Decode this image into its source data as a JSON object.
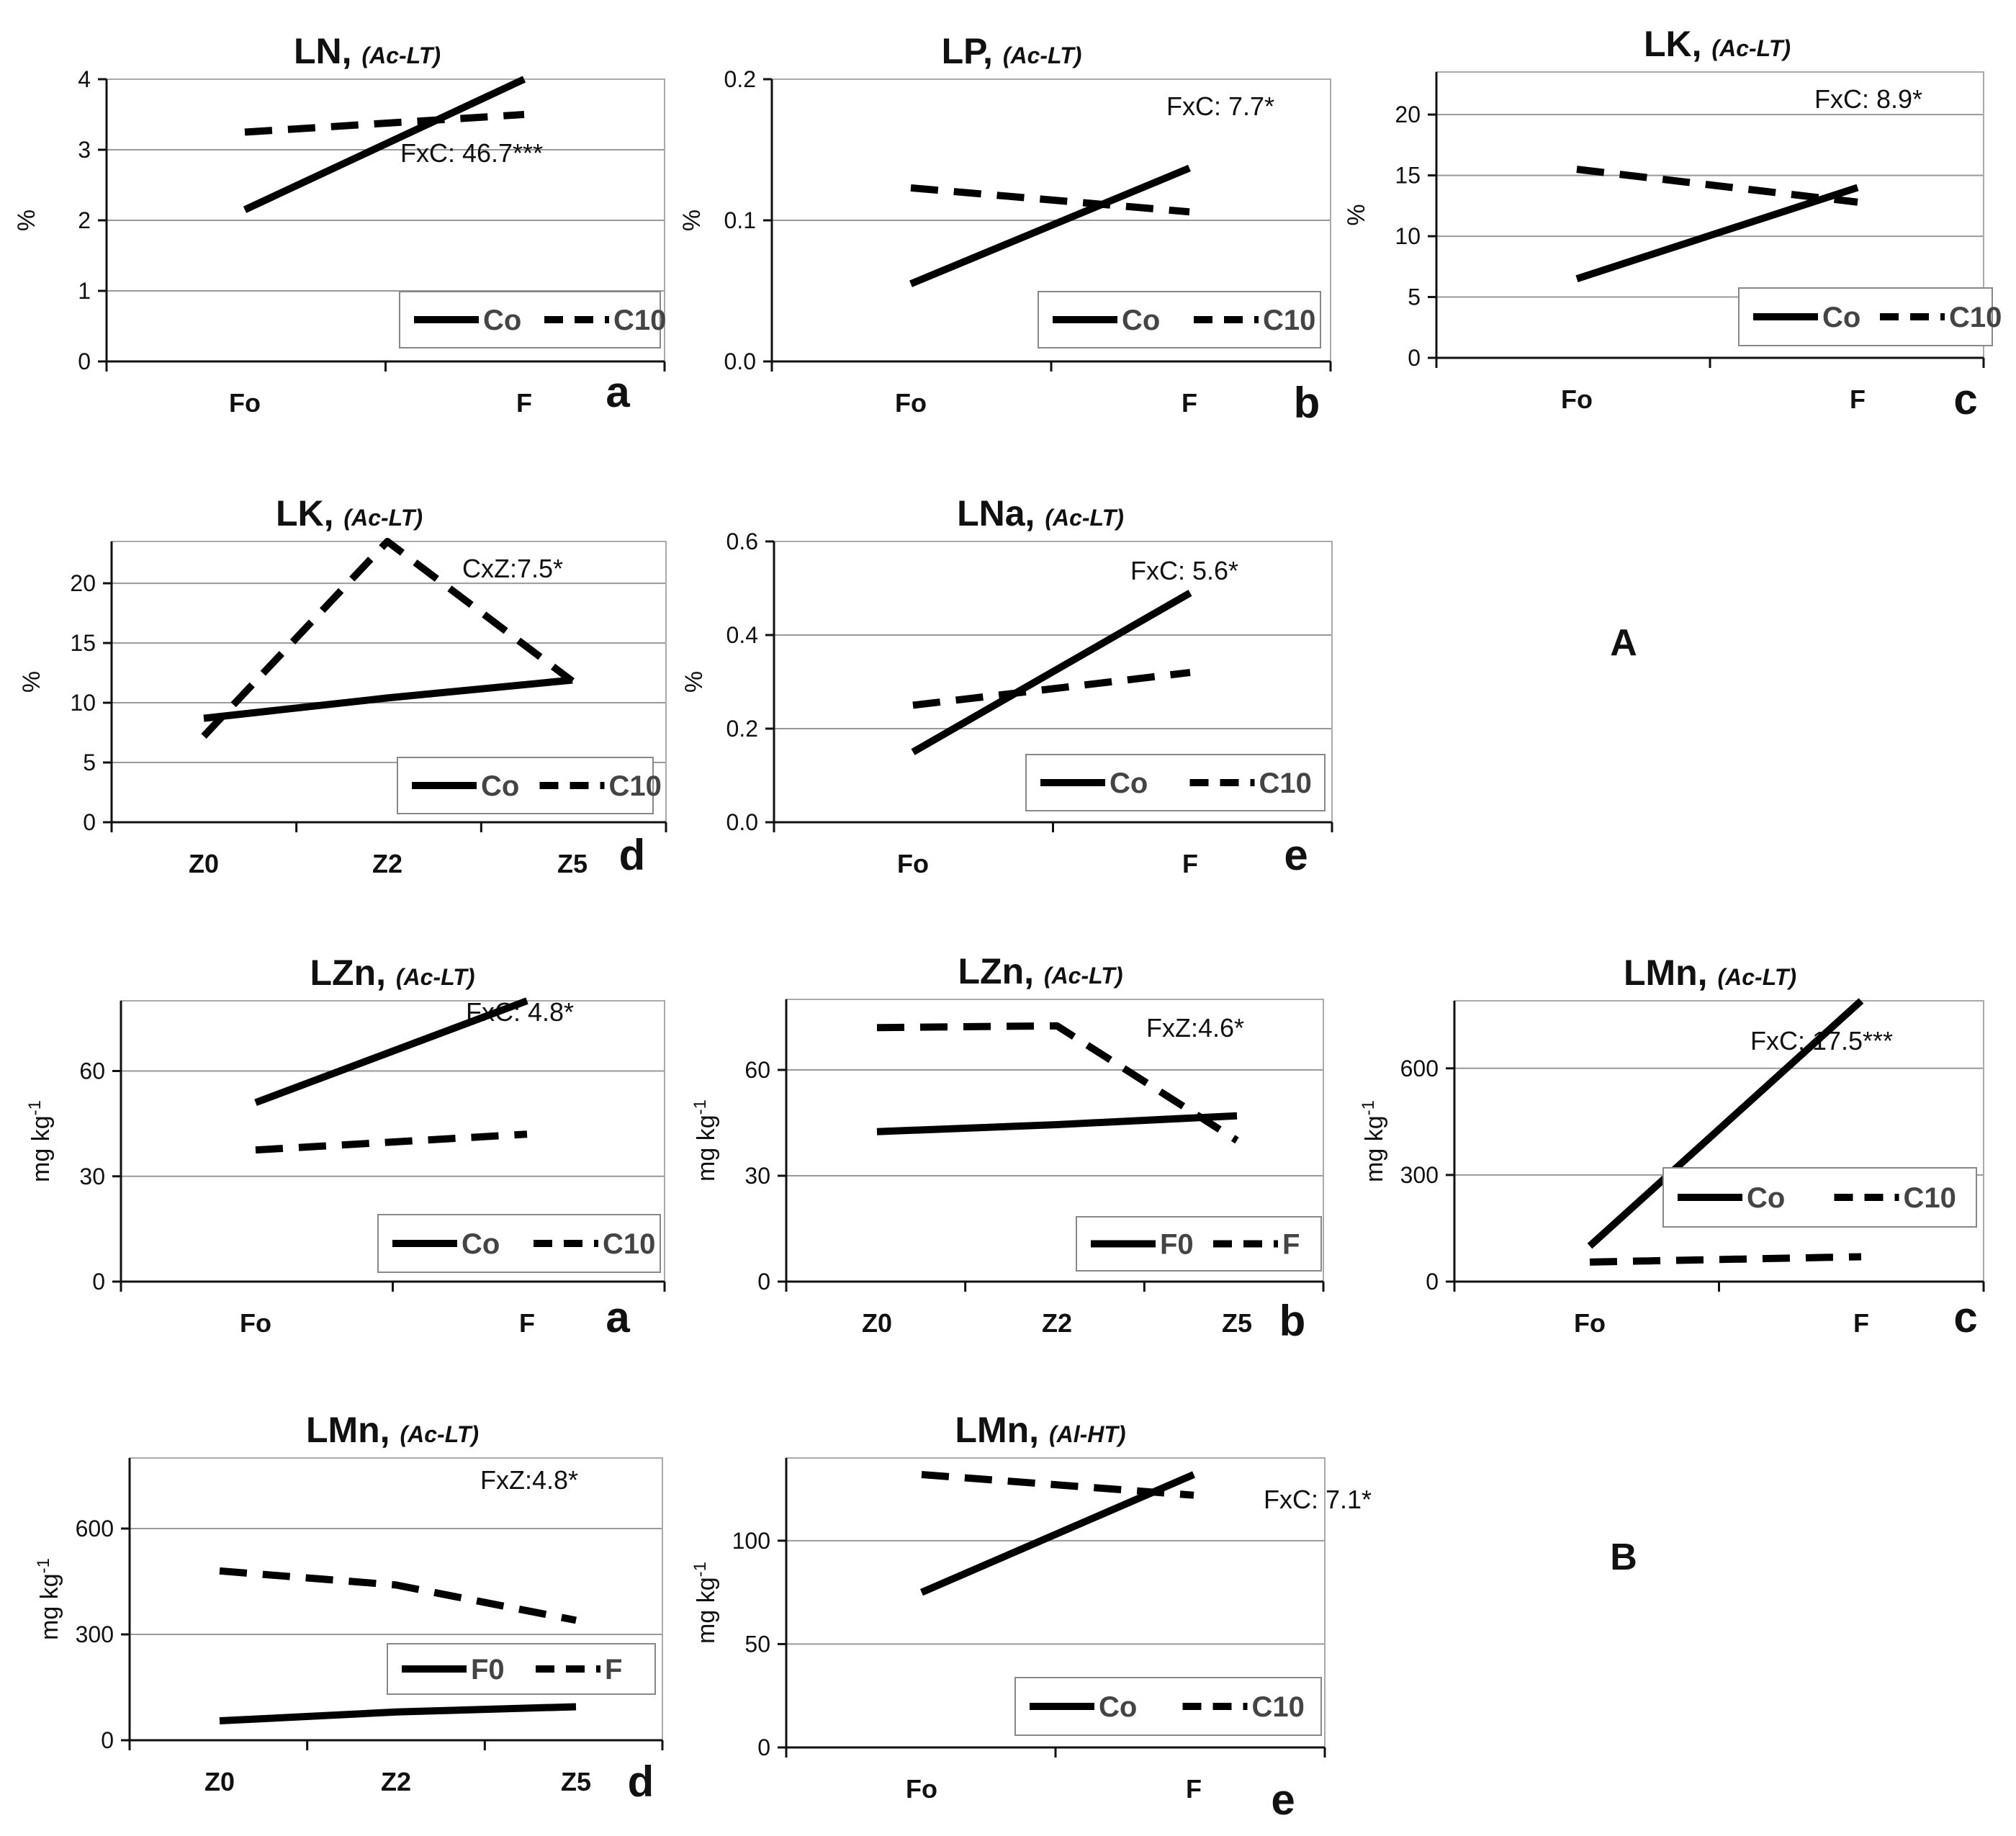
{
  "group_labels": [
    "A",
    "B"
  ],
  "chart_data": [
    {
      "type": "line",
      "title": "LN,",
      "subtitle": "(Ac-LT)",
      "panel": "a",
      "ylabel": "%",
      "categories": [
        "Fo",
        "F"
      ],
      "ylim": [
        0,
        4
      ],
      "yticks": [
        0,
        1,
        2,
        3,
        4
      ],
      "ytick_labels": [
        "0",
        "1",
        "2",
        "3",
        "4"
      ],
      "annotation": "FxC: 46.7***",
      "series": [
        {
          "name": "Co",
          "style": "solid",
          "values": [
            2.15,
            4.0
          ]
        },
        {
          "name": "C10",
          "style": "dashed",
          "values": [
            3.25,
            3.5
          ]
        }
      ]
    },
    {
      "type": "line",
      "title": "LP,",
      "subtitle": "(Ac-LT)",
      "panel": "b",
      "ylabel": "%",
      "categories": [
        "Fo",
        "F"
      ],
      "ylim": [
        0,
        0.2
      ],
      "yticks": [
        0,
        0.1,
        0.2
      ],
      "ytick_labels": [
        "0.0",
        "0.1",
        "0.2"
      ],
      "annotation": "FxC: 7.7*",
      "series": [
        {
          "name": "Co",
          "style": "solid",
          "values": [
            0.055,
            0.137
          ]
        },
        {
          "name": "C10",
          "style": "dashed",
          "values": [
            0.123,
            0.106
          ]
        }
      ]
    },
    {
      "type": "line",
      "title": "LK,",
      "subtitle": "(Ac-LT)",
      "panel": "c",
      "ylabel": "%",
      "categories": [
        "Fo",
        "F"
      ],
      "ylim": [
        0,
        23.5
      ],
      "yticks": [
        0,
        5,
        10,
        15,
        20
      ],
      "ytick_labels": [
        "0",
        "5",
        "10",
        "15",
        "20"
      ],
      "annotation": "FxC: 8.9*",
      "series": [
        {
          "name": "Co",
          "style": "solid",
          "values": [
            6.5,
            14.0
          ]
        },
        {
          "name": "C10",
          "style": "dashed",
          "values": [
            15.5,
            12.8
          ]
        }
      ]
    },
    {
      "type": "line",
      "title": "LK,",
      "subtitle": "(Ac-LT)",
      "panel": "d",
      "ylabel": "%",
      "categories": [
        "Z0",
        "Z2",
        "Z5"
      ],
      "ylim": [
        0,
        23.5
      ],
      "yticks": [
        0,
        5,
        10,
        15,
        20
      ],
      "ytick_labels": [
        "0",
        "5",
        "10",
        "15",
        "20"
      ],
      "annotation": "CxZ:7.5*",
      "series": [
        {
          "name": "Co",
          "style": "solid",
          "values": [
            8.7,
            10.4,
            11.9
          ]
        },
        {
          "name": "C10",
          "style": "dashed",
          "values": [
            7.2,
            23.5,
            11.8
          ]
        }
      ]
    },
    {
      "type": "line",
      "title": "LNa,",
      "subtitle": "(Ac-LT)",
      "panel": "e",
      "ylabel": "%",
      "categories": [
        "Fo",
        "F"
      ],
      "ylim": [
        0,
        0.6
      ],
      "yticks": [
        0,
        0.2,
        0.4,
        0.6
      ],
      "ytick_labels": [
        "0.0",
        "0.2",
        "0.4",
        "0.6"
      ],
      "annotation": "FxC: 5.6*",
      "series": [
        {
          "name": "Co",
          "style": "solid",
          "values": [
            0.15,
            0.49
          ]
        },
        {
          "name": "C10",
          "style": "dashed",
          "values": [
            0.25,
            0.32
          ]
        }
      ]
    },
    {
      "type": "line",
      "title": "LZn,",
      "subtitle": "(Ac-LT)",
      "panel": "a",
      "ylabel": "mg kg-1",
      "categories": [
        "Fo",
        "F"
      ],
      "ylim": [
        0,
        80
      ],
      "yticks": [
        0,
        30,
        60
      ],
      "ytick_labels": [
        "0",
        "30",
        "60"
      ],
      "annotation": "FxC: 4.8*",
      "series": [
        {
          "name": "Co",
          "style": "solid",
          "values": [
            51,
            80
          ]
        },
        {
          "name": "C10",
          "style": "dashed",
          "values": [
            37.5,
            42
          ]
        }
      ]
    },
    {
      "type": "line",
      "title": "LZn,",
      "subtitle": "(Ac-LT)",
      "panel": "b",
      "ylabel": "mg kg-1",
      "categories": [
        "Z0",
        "Z2",
        "Z5"
      ],
      "ylim": [
        0,
        80
      ],
      "yticks": [
        0,
        30,
        60
      ],
      "ytick_labels": [
        "0",
        "30",
        "60"
      ],
      "annotation": "FxZ:4.6*",
      "series": [
        {
          "name": "F0",
          "style": "solid",
          "values": [
            42.5,
            44.5,
            47
          ]
        },
        {
          "name": "F",
          "style": "dashed",
          "values": [
            72,
            72.5,
            40
          ]
        }
      ]
    },
    {
      "type": "line",
      "title": "LMn,",
      "subtitle": "(Ac-LT)",
      "panel": "c",
      "ylabel": "mg kg-1",
      "categories": [
        "Fo",
        "F"
      ],
      "ylim": [
        0,
        790
      ],
      "yticks": [
        0,
        300,
        600
      ],
      "ytick_labels": [
        "0",
        "300",
        "600"
      ],
      "annotation": "FxC: 17.5***",
      "series": [
        {
          "name": "Co",
          "style": "solid",
          "values": [
            100,
            790
          ]
        },
        {
          "name": "C10",
          "style": "dashed",
          "values": [
            55,
            70
          ]
        }
      ]
    },
    {
      "type": "line",
      "title": "LMn,",
      "subtitle": "(Ac-LT)",
      "panel": "d",
      "ylabel": "mg kg-1",
      "categories": [
        "Z0",
        "Z2",
        "Z5"
      ],
      "ylim": [
        0,
        800
      ],
      "yticks": [
        0,
        300,
        600
      ],
      "ytick_labels": [
        "0",
        "300",
        "600"
      ],
      "annotation": "FxZ:4.8*",
      "series": [
        {
          "name": "F0",
          "style": "solid",
          "values": [
            55,
            80,
            95
          ]
        },
        {
          "name": "F",
          "style": "dashed",
          "values": [
            480,
            440,
            340
          ]
        }
      ]
    },
    {
      "type": "line",
      "title": "LMn,",
      "subtitle": "(Al-HT)",
      "panel": "e",
      "ylabel": "mg kg-1",
      "categories": [
        "Fo",
        "F"
      ],
      "ylim": [
        0,
        140
      ],
      "yticks": [
        0,
        50,
        100
      ],
      "ytick_labels": [
        "0",
        "50",
        "100"
      ],
      "annotation": "FxC: 7.1*",
      "series": [
        {
          "name": "Co",
          "style": "solid",
          "values": [
            75,
            132
          ]
        },
        {
          "name": "C10",
          "style": "dashed",
          "values": [
            132,
            122
          ]
        }
      ]
    }
  ]
}
